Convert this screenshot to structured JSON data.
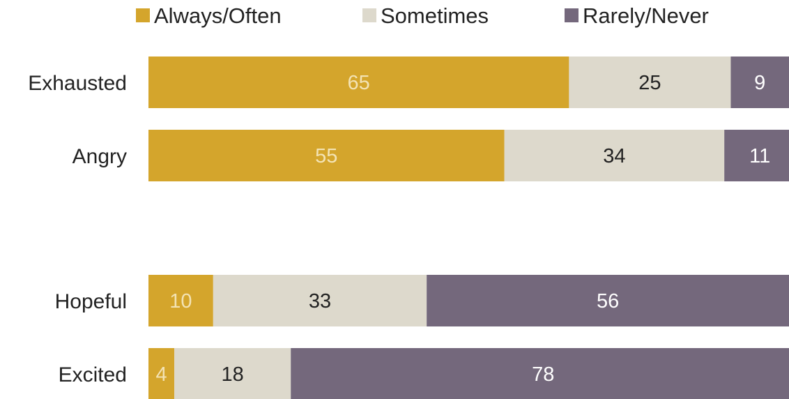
{
  "chart_data": {
    "type": "bar",
    "orientation": "horizontal",
    "stacked": true,
    "title": "",
    "xlabel": "",
    "ylabel": "",
    "categories": [
      "Exhausted",
      "Angry",
      "Hopeful",
      "Excited"
    ],
    "groups": [
      [
        "Exhausted",
        "Angry"
      ],
      [
        "Hopeful",
        "Excited"
      ]
    ],
    "series": [
      {
        "name": "Always/Often",
        "values": [
          65,
          55,
          10,
          4
        ],
        "color": "#D4A52C",
        "label_color": "#f3e3b4"
      },
      {
        "name": "Sometimes",
        "values": [
          25,
          34,
          33,
          18
        ],
        "color": "#DDD9CC",
        "label_color": "#222222"
      },
      {
        "name": "Rarely/Never",
        "values": [
          9,
          11,
          56,
          78
        ],
        "color": "#74687C",
        "label_color": "#ffffff"
      }
    ],
    "value_labels": [
      [
        "65",
        "55",
        "10",
        "4"
      ],
      [
        "25",
        "34",
        "33",
        "18"
      ],
      [
        "9",
        "11",
        "56",
        "78"
      ]
    ],
    "xlim": [
      0,
      99
    ],
    "grid": false,
    "legend_position": "top"
  }
}
